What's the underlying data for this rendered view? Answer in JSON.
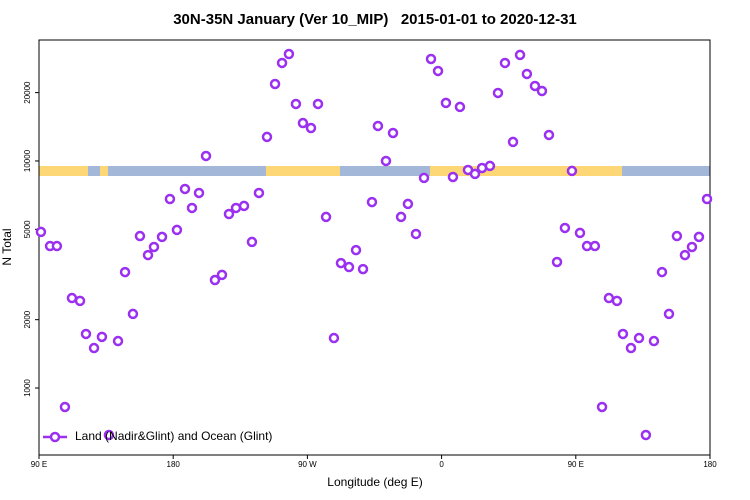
{
  "chart_data": {
    "type": "scatter",
    "title": "30N-35N January (Ver 10_MIP)   2015-01-01 to 2020-12-31",
    "xlabel": "Longitude (deg E)",
    "ylabel": "N Total",
    "yscale": "log",
    "xlim": [
      90,
      540
    ],
    "ylim": [
      507,
      34100
    ],
    "xticks": [
      {
        "value": 90,
        "label": "90 E"
      },
      180,
      {
        "value": 270,
        "label": "90 W"
      },
      {
        "value": 360,
        "label": "0"
      },
      {
        "value": 450,
        "label": "90 E"
      },
      {
        "value": 540,
        "label": "180"
      }
    ],
    "yticks": [
      1000,
      2000,
      5000,
      10000,
      20000
    ],
    "legend": "bottom-left",
    "x": [
      91.3,
      97.4,
      102,
      107.4,
      112.1,
      117.5,
      121.5,
      126.9,
      132.2,
      136.9,
      143,
      147.7,
      153,
      157.7,
      163.1,
      167.1,
      172.5,
      177.8,
      182.5,
      187.9,
      192.6,
      197.3,
      202,
      208,
      212.7,
      217.4,
      222.1,
      227.5,
      232.8,
      237.5,
      242.9,
      248.3,
      253,
      257.6,
      262.3,
      267,
      272.4,
      277.1,
      282.5,
      287.8,
      292.5,
      297.9,
      302.6,
      307.3,
      313.3,
      317.3,
      322.7,
      327.4,
      332.8,
      337.4,
      342.8,
      348.2,
      352.9,
      357.6,
      362.9,
      367.6,
      372.3,
      377.7,
      382.4,
      387.1,
      392.4,
      397.8,
      402.5,
      407.9,
      412.6,
      417.2,
      422.6,
      427.3,
      432,
      437.4,
      442.7,
      447.4,
      452.8,
      457.5,
      462.8,
      467.6,
      472.2,
      477.6,
      481.6,
      487,
      492.4,
      497,
      502.4,
      507.8,
      512.5,
      517.8,
      523.2,
      527.9,
      532.6,
      538
    ],
    "series": [
      {
        "name": "Land (Nadir&Glint) and Ocean (Glint)",
        "color": "#9b30f0",
        "values": [
          4870,
          4220,
          4220,
          825,
          2490,
          2420,
          1730,
          1500,
          1680,
          621,
          1610,
          3240,
          2120,
          4670,
          3850,
          4180,
          4630,
          6800,
          4970,
          7530,
          6210,
          7230,
          10520,
          2990,
          3150,
          5840,
          6210,
          6340,
          4400,
          7230,
          12760,
          21830,
          27020,
          29580,
          17830,
          14690,
          13970,
          17830,
          5670,
          1660,
          3550,
          3410,
          4050,
          3340,
          6590,
          14260,
          10000,
          13280,
          5670,
          6470,
          4770,
          8420,
          28130,
          24910,
          18020,
          8500,
          17300,
          9130,
          8770,
          9310,
          9510,
          19930,
          27020,
          12130,
          29310,
          24170,
          21400,
          20330,
          13020,
          3590,
          5070,
          9040,
          4820,
          4220,
          4220,
          825,
          2490,
          2420,
          1730,
          1500,
          1660,
          621,
          1610,
          3240,
          2120,
          4670,
          3850,
          4180,
          4630,
          6800
        ]
      }
    ]
  }
}
